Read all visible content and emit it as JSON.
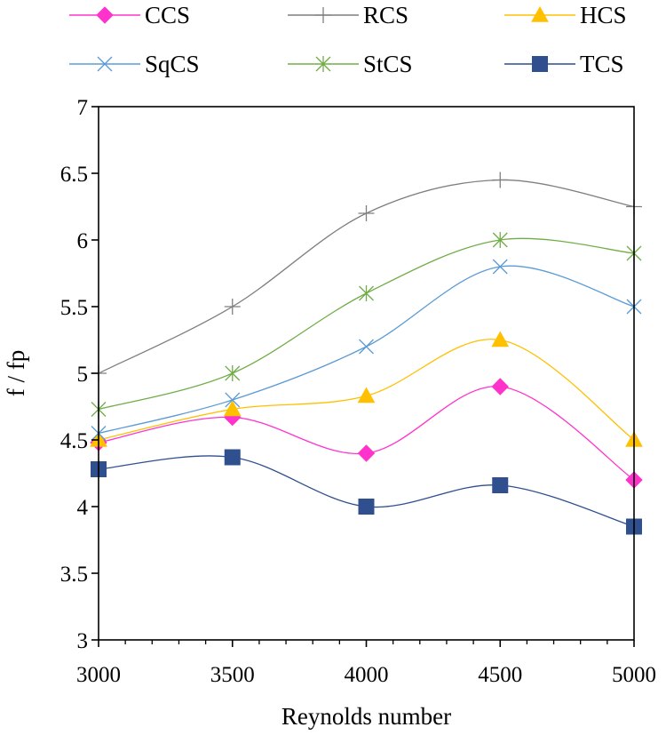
{
  "chart_data": {
    "type": "line",
    "smooth": true,
    "title": "",
    "xlabel": "Reynolds number",
    "ylabel": "f / fp",
    "x": [
      3000,
      3500,
      4000,
      4500,
      5000
    ],
    "xlim": [
      3000,
      5000
    ],
    "ylim": [
      3,
      7
    ],
    "x_ticks": [
      "3000",
      "3500",
      "4000",
      "4500",
      "5000"
    ],
    "y_ticks": [
      "3",
      "3.5",
      "4",
      "4.5",
      "5",
      "5.5",
      "6",
      "6.5",
      "7"
    ],
    "y_tick_values": [
      3,
      3.5,
      4,
      4.5,
      5,
      5.5,
      6,
      6.5,
      7
    ],
    "grid": false,
    "legend_position": "top",
    "series": [
      {
        "name": "CCS",
        "values": [
          4.48,
          4.67,
          4.4,
          4.9,
          4.2
        ],
        "color": "#ff33cc",
        "marker": "diamond"
      },
      {
        "name": "RCS",
        "values": [
          5.0,
          5.5,
          6.2,
          6.45,
          6.25
        ],
        "color": "#7f7f7f",
        "marker": "plus"
      },
      {
        "name": "HCS",
        "values": [
          4.5,
          4.73,
          4.83,
          5.25,
          4.5
        ],
        "color": "#ffc000",
        "marker": "triangle"
      },
      {
        "name": "SqCS",
        "values": [
          4.55,
          4.8,
          5.2,
          5.8,
          5.5
        ],
        "color": "#5b9bd5",
        "marker": "x"
      },
      {
        "name": "StCS",
        "values": [
          4.73,
          5.0,
          5.6,
          6.0,
          5.9
        ],
        "color": "#70ad47",
        "marker": "star"
      },
      {
        "name": "TCS",
        "values": [
          4.28,
          4.37,
          4.0,
          4.16,
          3.85
        ],
        "color": "#2f4f8f",
        "marker": "square"
      }
    ]
  }
}
